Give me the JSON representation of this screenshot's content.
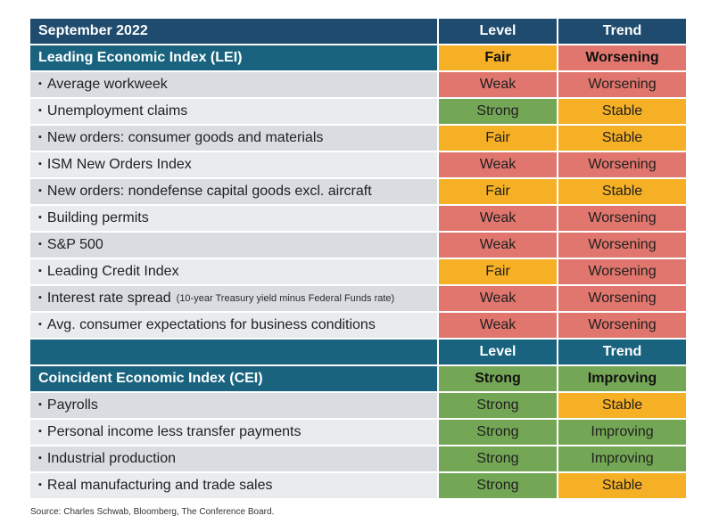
{
  "colors": {
    "header_dark": "#1e4b6e",
    "header_blue": "#19637e",
    "strong": "#74a755",
    "fair": "#f5b025",
    "weak": "#e0766d",
    "row_gray": "#d9dde2",
    "row_gray_alt": "#e9ebee"
  },
  "table": {
    "header": {
      "title": "September 2022",
      "level": "Level",
      "trend": "Trend"
    },
    "lei": {
      "title": "Leading Economic Index (LEI)",
      "level": "Fair",
      "trend": "Worsening",
      "items": [
        {
          "label": "Average workweek",
          "note": "",
          "level": "Weak",
          "trend": "Worsening"
        },
        {
          "label": "Unemployment claims",
          "note": "",
          "level": "Strong",
          "trend": "Stable"
        },
        {
          "label": "New orders: consumer goods and materials",
          "note": "",
          "level": "Fair",
          "trend": "Stable"
        },
        {
          "label": "ISM New Orders Index",
          "note": "",
          "level": "Weak",
          "trend": "Worsening"
        },
        {
          "label": "New orders: nondefense capital goods excl. aircraft",
          "note": "",
          "level": "Fair",
          "trend": "Stable"
        },
        {
          "label": "Building permits",
          "note": "",
          "level": "Weak",
          "trend": "Worsening"
        },
        {
          "label": "S&P 500",
          "note": "",
          "level": "Weak",
          "trend": "Worsening"
        },
        {
          "label": "Leading Credit Index",
          "note": "",
          "level": "Fair",
          "trend": "Worsening"
        },
        {
          "label": "Interest rate spread",
          "note": "(10-year Treasury yield minus Federal Funds rate)",
          "level": "Weak",
          "trend": "Worsening"
        },
        {
          "label": "Avg. consumer expectations for business conditions",
          "note": "",
          "level": "Weak",
          "trend": "Worsening"
        }
      ]
    },
    "header2": {
      "title": "",
      "level": "Level",
      "trend": "Trend"
    },
    "cei": {
      "title": "Coincident Economic Index (CEI)",
      "level": "Strong",
      "trend": "Improving",
      "items": [
        {
          "label": "Payrolls",
          "note": "",
          "level": "Strong",
          "trend": "Stable"
        },
        {
          "label": "Personal income less transfer payments",
          "note": "",
          "level": "Strong",
          "trend": "Improving"
        },
        {
          "label": "Industrial production",
          "note": "",
          "level": "Strong",
          "trend": "Improving"
        },
        {
          "label": "Real manufacturing and trade sales",
          "note": "",
          "level": "Strong",
          "trend": "Stable"
        }
      ]
    }
  },
  "source": "Source: Charles Schwab, Bloomberg, The Conference Board."
}
